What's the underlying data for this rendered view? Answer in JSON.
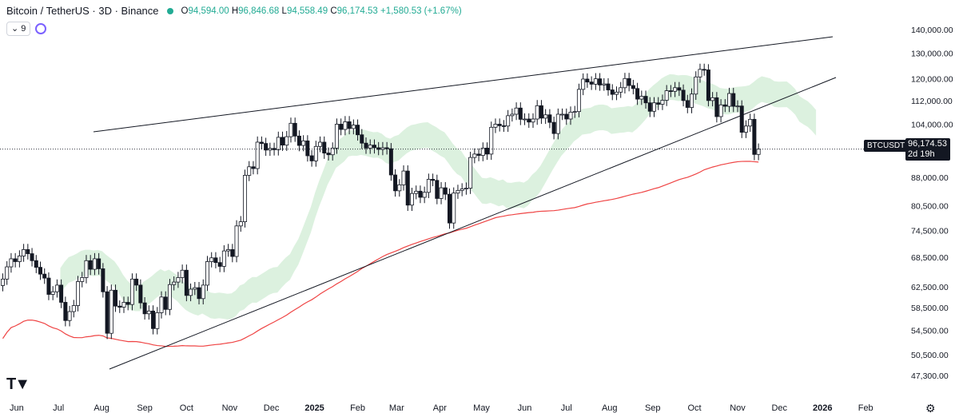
{
  "header": {
    "symbol": "Bitcoin / TetherUS · 3D · Binance",
    "open_label": "O",
    "open": "94,594.00",
    "high_label": "H",
    "high": "96,846.68",
    "low_label": "L",
    "low": "94,558.49",
    "close_label": "C",
    "close": "96,174.53",
    "change": "+1,580.53 (+1.67%)",
    "interval_value": "9"
  },
  "price_tag": {
    "symbol": "BTCUSDT",
    "price": "96,174.53",
    "countdown": "2d 19h"
  },
  "colors": {
    "up": "#131722",
    "down": "#131722",
    "cloud_green": "#d8f0db",
    "cloud_red": "#f8d4d4",
    "ma_line": "#ef4444",
    "trendline": "#131722",
    "text": "#131722",
    "accent_green": "#22ab94"
  },
  "chart_data": {
    "type": "candlestick",
    "title": "Bitcoin / TetherUS · 3D · Binance",
    "y_scale": "log",
    "ylim": [
      45000,
      146000
    ],
    "y_ticks": [
      {
        "value": 47300,
        "label": "47,300.00"
      },
      {
        "value": 50500,
        "label": "50,500.00"
      },
      {
        "value": 54500,
        "label": "54,500.00"
      },
      {
        "value": 58500,
        "label": "58,500.00"
      },
      {
        "value": 62500,
        "label": "62,500.00"
      },
      {
        "value": 68500,
        "label": "68,500.00"
      },
      {
        "value": 74500,
        "label": "74,500.00"
      },
      {
        "value": 80500,
        "label": "80,500.00"
      },
      {
        "value": 88000,
        "label": "88,000.00"
      },
      {
        "value": 96000,
        "label": "96,000.00"
      },
      {
        "value": 104000,
        "label": "104,000.00"
      },
      {
        "value": 112000,
        "label": "112,000.00"
      },
      {
        "value": 120000,
        "label": "120,000.00"
      },
      {
        "value": 130000,
        "label": "130,000.00"
      },
      {
        "value": 140000,
        "label": "140,000.00"
      }
    ],
    "x_ticks": [
      {
        "label": "Jun",
        "date": "2024-06-01",
        "bold": false
      },
      {
        "label": "Jul",
        "date": "2024-07-01",
        "bold": false
      },
      {
        "label": "Aug",
        "date": "2024-08-01",
        "bold": false
      },
      {
        "label": "Sep",
        "date": "2024-09-01",
        "bold": false
      },
      {
        "label": "Oct",
        "date": "2024-10-01",
        "bold": false
      },
      {
        "label": "Nov",
        "date": "2024-11-01",
        "bold": false
      },
      {
        "label": "Dec",
        "date": "2024-12-01",
        "bold": false
      },
      {
        "label": "2025",
        "date": "2025-01-01",
        "bold": true
      },
      {
        "label": "Feb",
        "date": "2025-02-01",
        "bold": false
      },
      {
        "label": "Mar",
        "date": "2025-03-01",
        "bold": false
      },
      {
        "label": "Apr",
        "date": "2025-04-01",
        "bold": false
      },
      {
        "label": "May",
        "date": "2025-05-01",
        "bold": false
      },
      {
        "label": "Jun",
        "date": "2025-06-01",
        "bold": false
      },
      {
        "label": "Jul",
        "date": "2025-07-01",
        "bold": false
      },
      {
        "label": "Aug",
        "date": "2025-08-01",
        "bold": false
      },
      {
        "label": "Sep",
        "date": "2025-09-01",
        "bold": false
      },
      {
        "label": "Oct",
        "date": "2025-10-01",
        "bold": false
      },
      {
        "label": "Nov",
        "date": "2025-11-01",
        "bold": false
      },
      {
        "label": "Dec",
        "date": "2025-12-01",
        "bold": false
      },
      {
        "label": "2026",
        "date": "2026-01-01",
        "bold": true
      },
      {
        "label": "Feb",
        "date": "2026-02-01",
        "bold": false
      }
    ],
    "x_range": [
      "2024-05-20",
      "2026-02-25"
    ],
    "candles": [
      {
        "date": "2024-05-22",
        "close": 64000
      },
      {
        "date": "2024-05-25",
        "close": 66500
      },
      {
        "date": "2024-05-28",
        "close": 68200
      },
      {
        "date": "2024-05-31",
        "close": 67600
      },
      {
        "date": "2024-06-03",
        "close": 68800
      },
      {
        "date": "2024-06-06",
        "close": 70200
      },
      {
        "date": "2024-06-09",
        "close": 69300
      },
      {
        "date": "2024-06-12",
        "close": 67800
      },
      {
        "date": "2024-06-15",
        "close": 66400
      },
      {
        "date": "2024-06-18",
        "close": 65000
      },
      {
        "date": "2024-06-21",
        "close": 64200
      },
      {
        "date": "2024-06-24",
        "close": 61000
      },
      {
        "date": "2024-06-27",
        "close": 61500
      },
      {
        "date": "2024-06-30",
        "close": 62800
      },
      {
        "date": "2024-07-03",
        "close": 59500
      },
      {
        "date": "2024-07-06",
        "close": 56200
      },
      {
        "date": "2024-07-09",
        "close": 57800
      },
      {
        "date": "2024-07-12",
        "close": 58900
      },
      {
        "date": "2024-07-15",
        "close": 63500
      },
      {
        "date": "2024-07-18",
        "close": 64300
      },
      {
        "date": "2024-07-21",
        "close": 67800
      },
      {
        "date": "2024-07-24",
        "close": 66000
      },
      {
        "date": "2024-07-27",
        "close": 68200
      },
      {
        "date": "2024-07-30",
        "close": 66100
      },
      {
        "date": "2024-08-02",
        "close": 61500
      },
      {
        "date": "2024-08-05",
        "close": 54000
      },
      {
        "date": "2024-08-08",
        "close": 61800
      },
      {
        "date": "2024-08-11",
        "close": 58800
      },
      {
        "date": "2024-08-14",
        "close": 58600
      },
      {
        "date": "2024-08-17",
        "close": 59500
      },
      {
        "date": "2024-08-20",
        "close": 59100
      },
      {
        "date": "2024-08-23",
        "close": 64000
      },
      {
        "date": "2024-08-26",
        "close": 62800
      },
      {
        "date": "2024-08-29",
        "close": 59400
      },
      {
        "date": "2024-09-01",
        "close": 57400
      },
      {
        "date": "2024-09-04",
        "close": 57900
      },
      {
        "date": "2024-09-07",
        "close": 54800
      },
      {
        "date": "2024-09-10",
        "close": 57600
      },
      {
        "date": "2024-09-13",
        "close": 60500
      },
      {
        "date": "2024-09-16",
        "close": 58200
      },
      {
        "date": "2024-09-19",
        "close": 62900
      },
      {
        "date": "2024-09-22",
        "close": 63400
      },
      {
        "date": "2024-09-25",
        "close": 64300
      },
      {
        "date": "2024-09-28",
        "close": 65800
      },
      {
        "date": "2024-10-01",
        "close": 60800
      },
      {
        "date": "2024-10-04",
        "close": 62000
      },
      {
        "date": "2024-10-07",
        "close": 62300
      },
      {
        "date": "2024-10-10",
        "close": 60200
      },
      {
        "date": "2024-10-13",
        "close": 62800
      },
      {
        "date": "2024-10-16",
        "close": 67600
      },
      {
        "date": "2024-10-19",
        "close": 68400
      },
      {
        "date": "2024-10-22",
        "close": 67400
      },
      {
        "date": "2024-10-25",
        "close": 66600
      },
      {
        "date": "2024-10-28",
        "close": 69900
      },
      {
        "date": "2024-10-31",
        "close": 70200
      },
      {
        "date": "2024-11-03",
        "close": 68700
      },
      {
        "date": "2024-11-06",
        "close": 75600
      },
      {
        "date": "2024-11-09",
        "close": 76600
      },
      {
        "date": "2024-11-12",
        "close": 88600
      },
      {
        "date": "2024-11-15",
        "close": 91000
      },
      {
        "date": "2024-11-18",
        "close": 90500
      },
      {
        "date": "2024-11-21",
        "close": 98300
      },
      {
        "date": "2024-11-24",
        "close": 97900
      },
      {
        "date": "2024-11-27",
        "close": 95900
      },
      {
        "date": "2024-11-30",
        "close": 96400
      },
      {
        "date": "2024-12-03",
        "close": 96000
      },
      {
        "date": "2024-12-06",
        "close": 99800
      },
      {
        "date": "2024-12-09",
        "close": 97400
      },
      {
        "date": "2024-12-12",
        "close": 100000
      },
      {
        "date": "2024-12-15",
        "close": 104300
      },
      {
        "date": "2024-12-18",
        "close": 100200
      },
      {
        "date": "2024-12-21",
        "close": 97300
      },
      {
        "date": "2024-12-24",
        "close": 98700
      },
      {
        "date": "2024-12-27",
        "close": 94200
      },
      {
        "date": "2024-12-30",
        "close": 92700
      },
      {
        "date": "2025-01-02",
        "close": 97000
      },
      {
        "date": "2025-01-05",
        "close": 98300
      },
      {
        "date": "2025-01-08",
        "close": 95000
      },
      {
        "date": "2025-01-11",
        "close": 94500
      },
      {
        "date": "2025-01-14",
        "close": 96500
      },
      {
        "date": "2025-01-17",
        "close": 104000
      },
      {
        "date": "2025-01-20",
        "close": 102300
      },
      {
        "date": "2025-01-23",
        "close": 104800
      },
      {
        "date": "2025-01-26",
        "close": 102600
      },
      {
        "date": "2025-01-29",
        "close": 103700
      },
      {
        "date": "2025-02-01",
        "close": 100600
      },
      {
        "date": "2025-02-04",
        "close": 98000
      },
      {
        "date": "2025-02-07",
        "close": 96500
      },
      {
        "date": "2025-02-10",
        "close": 97400
      },
      {
        "date": "2025-02-13",
        "close": 96600
      },
      {
        "date": "2025-02-16",
        "close": 96100
      },
      {
        "date": "2025-02-19",
        "close": 96600
      },
      {
        "date": "2025-02-22",
        "close": 96300
      },
      {
        "date": "2025-02-25",
        "close": 88700
      },
      {
        "date": "2025-02-28",
        "close": 84400
      },
      {
        "date": "2025-03-03",
        "close": 86000
      },
      {
        "date": "2025-03-06",
        "close": 89800
      },
      {
        "date": "2025-03-09",
        "close": 80700
      },
      {
        "date": "2025-03-12",
        "close": 83700
      },
      {
        "date": "2025-03-15",
        "close": 84300
      },
      {
        "date": "2025-03-18",
        "close": 82700
      },
      {
        "date": "2025-03-21",
        "close": 84000
      },
      {
        "date": "2025-03-24",
        "close": 87500
      },
      {
        "date": "2025-03-27",
        "close": 87200
      },
      {
        "date": "2025-03-30",
        "close": 82400
      },
      {
        "date": "2025-04-02",
        "close": 85200
      },
      {
        "date": "2025-04-05",
        "close": 83500
      },
      {
        "date": "2025-04-08",
        "close": 76300
      },
      {
        "date": "2025-04-11",
        "close": 83800
      },
      {
        "date": "2025-04-14",
        "close": 84500
      },
      {
        "date": "2025-04-17",
        "close": 84900
      },
      {
        "date": "2025-04-20",
        "close": 85100
      },
      {
        "date": "2025-04-23",
        "close": 93700
      },
      {
        "date": "2025-04-26",
        "close": 94700
      },
      {
        "date": "2025-04-29",
        "close": 94300
      },
      {
        "date": "2025-05-02",
        "close": 96500
      },
      {
        "date": "2025-05-05",
        "close": 94700
      },
      {
        "date": "2025-05-08",
        "close": 103000
      },
      {
        "date": "2025-05-11",
        "close": 104000
      },
      {
        "date": "2025-05-14",
        "close": 103500
      },
      {
        "date": "2025-05-17",
        "close": 103400
      },
      {
        "date": "2025-05-20",
        "close": 106800
      },
      {
        "date": "2025-05-23",
        "close": 107300
      },
      {
        "date": "2025-05-26",
        "close": 109400
      },
      {
        "date": "2025-05-29",
        "close": 105600
      },
      {
        "date": "2025-06-01",
        "close": 105700
      },
      {
        "date": "2025-06-04",
        "close": 104700
      },
      {
        "date": "2025-06-07",
        "close": 105700
      },
      {
        "date": "2025-06-10",
        "close": 110200
      },
      {
        "date": "2025-06-13",
        "close": 106000
      },
      {
        "date": "2025-06-16",
        "close": 107100
      },
      {
        "date": "2025-06-19",
        "close": 104600
      },
      {
        "date": "2025-06-22",
        "close": 101000
      },
      {
        "date": "2025-06-25",
        "close": 107300
      },
      {
        "date": "2025-06-28",
        "close": 107300
      },
      {
        "date": "2025-07-01",
        "close": 105700
      },
      {
        "date": "2025-07-04",
        "close": 108000
      },
      {
        "date": "2025-07-07",
        "close": 108200
      },
      {
        "date": "2025-07-10",
        "close": 116000
      },
      {
        "date": "2025-07-13",
        "close": 119800
      },
      {
        "date": "2025-07-16",
        "close": 118700
      },
      {
        "date": "2025-07-19",
        "close": 117900
      },
      {
        "date": "2025-07-22",
        "close": 119900
      },
      {
        "date": "2025-07-25",
        "close": 117600
      },
      {
        "date": "2025-07-28",
        "close": 118000
      },
      {
        "date": "2025-07-31",
        "close": 115800
      },
      {
        "date": "2025-08-03",
        "close": 114200
      },
      {
        "date": "2025-08-06",
        "close": 115000
      },
      {
        "date": "2025-08-09",
        "close": 116600
      },
      {
        "date": "2025-08-12",
        "close": 120000
      },
      {
        "date": "2025-08-15",
        "close": 117400
      },
      {
        "date": "2025-08-18",
        "close": 116300
      },
      {
        "date": "2025-08-21",
        "close": 112500
      },
      {
        "date": "2025-08-24",
        "close": 113500
      },
      {
        "date": "2025-08-27",
        "close": 111200
      },
      {
        "date": "2025-08-30",
        "close": 108300
      },
      {
        "date": "2025-09-02",
        "close": 111200
      },
      {
        "date": "2025-09-05",
        "close": 110700
      },
      {
        "date": "2025-09-08",
        "close": 112100
      },
      {
        "date": "2025-09-11",
        "close": 115500
      },
      {
        "date": "2025-09-14",
        "close": 115300
      },
      {
        "date": "2025-09-17",
        "close": 116600
      },
      {
        "date": "2025-09-20",
        "close": 115700
      },
      {
        "date": "2025-09-23",
        "close": 112000
      },
      {
        "date": "2025-09-26",
        "close": 109600
      },
      {
        "date": "2025-09-29",
        "close": 114300
      },
      {
        "date": "2025-10-02",
        "close": 120600
      },
      {
        "date": "2025-10-05",
        "close": 123500
      },
      {
        "date": "2025-10-08",
        "close": 123300
      },
      {
        "date": "2025-10-11",
        "close": 112000
      },
      {
        "date": "2025-10-14",
        "close": 113000
      },
      {
        "date": "2025-10-17",
        "close": 106500
      },
      {
        "date": "2025-10-20",
        "close": 110500
      },
      {
        "date": "2025-10-23",
        "close": 110000
      },
      {
        "date": "2025-10-26",
        "close": 114500
      },
      {
        "date": "2025-10-29",
        "close": 110000
      },
      {
        "date": "2025-11-01",
        "close": 110100
      },
      {
        "date": "2025-11-04",
        "close": 101400
      },
      {
        "date": "2025-11-07",
        "close": 103400
      },
      {
        "date": "2025-11-10",
        "close": 105600
      },
      {
        "date": "2025-11-13",
        "close": 94594
      },
      {
        "date": "2025-11-16",
        "close": 96174.53
      }
    ],
    "last_candle": {
      "date": "2025-11-16",
      "open": 94594.0,
      "high": 96846.68,
      "low": 94558.49,
      "close": 96174.53
    },
    "current_price": 96174.53
  }
}
